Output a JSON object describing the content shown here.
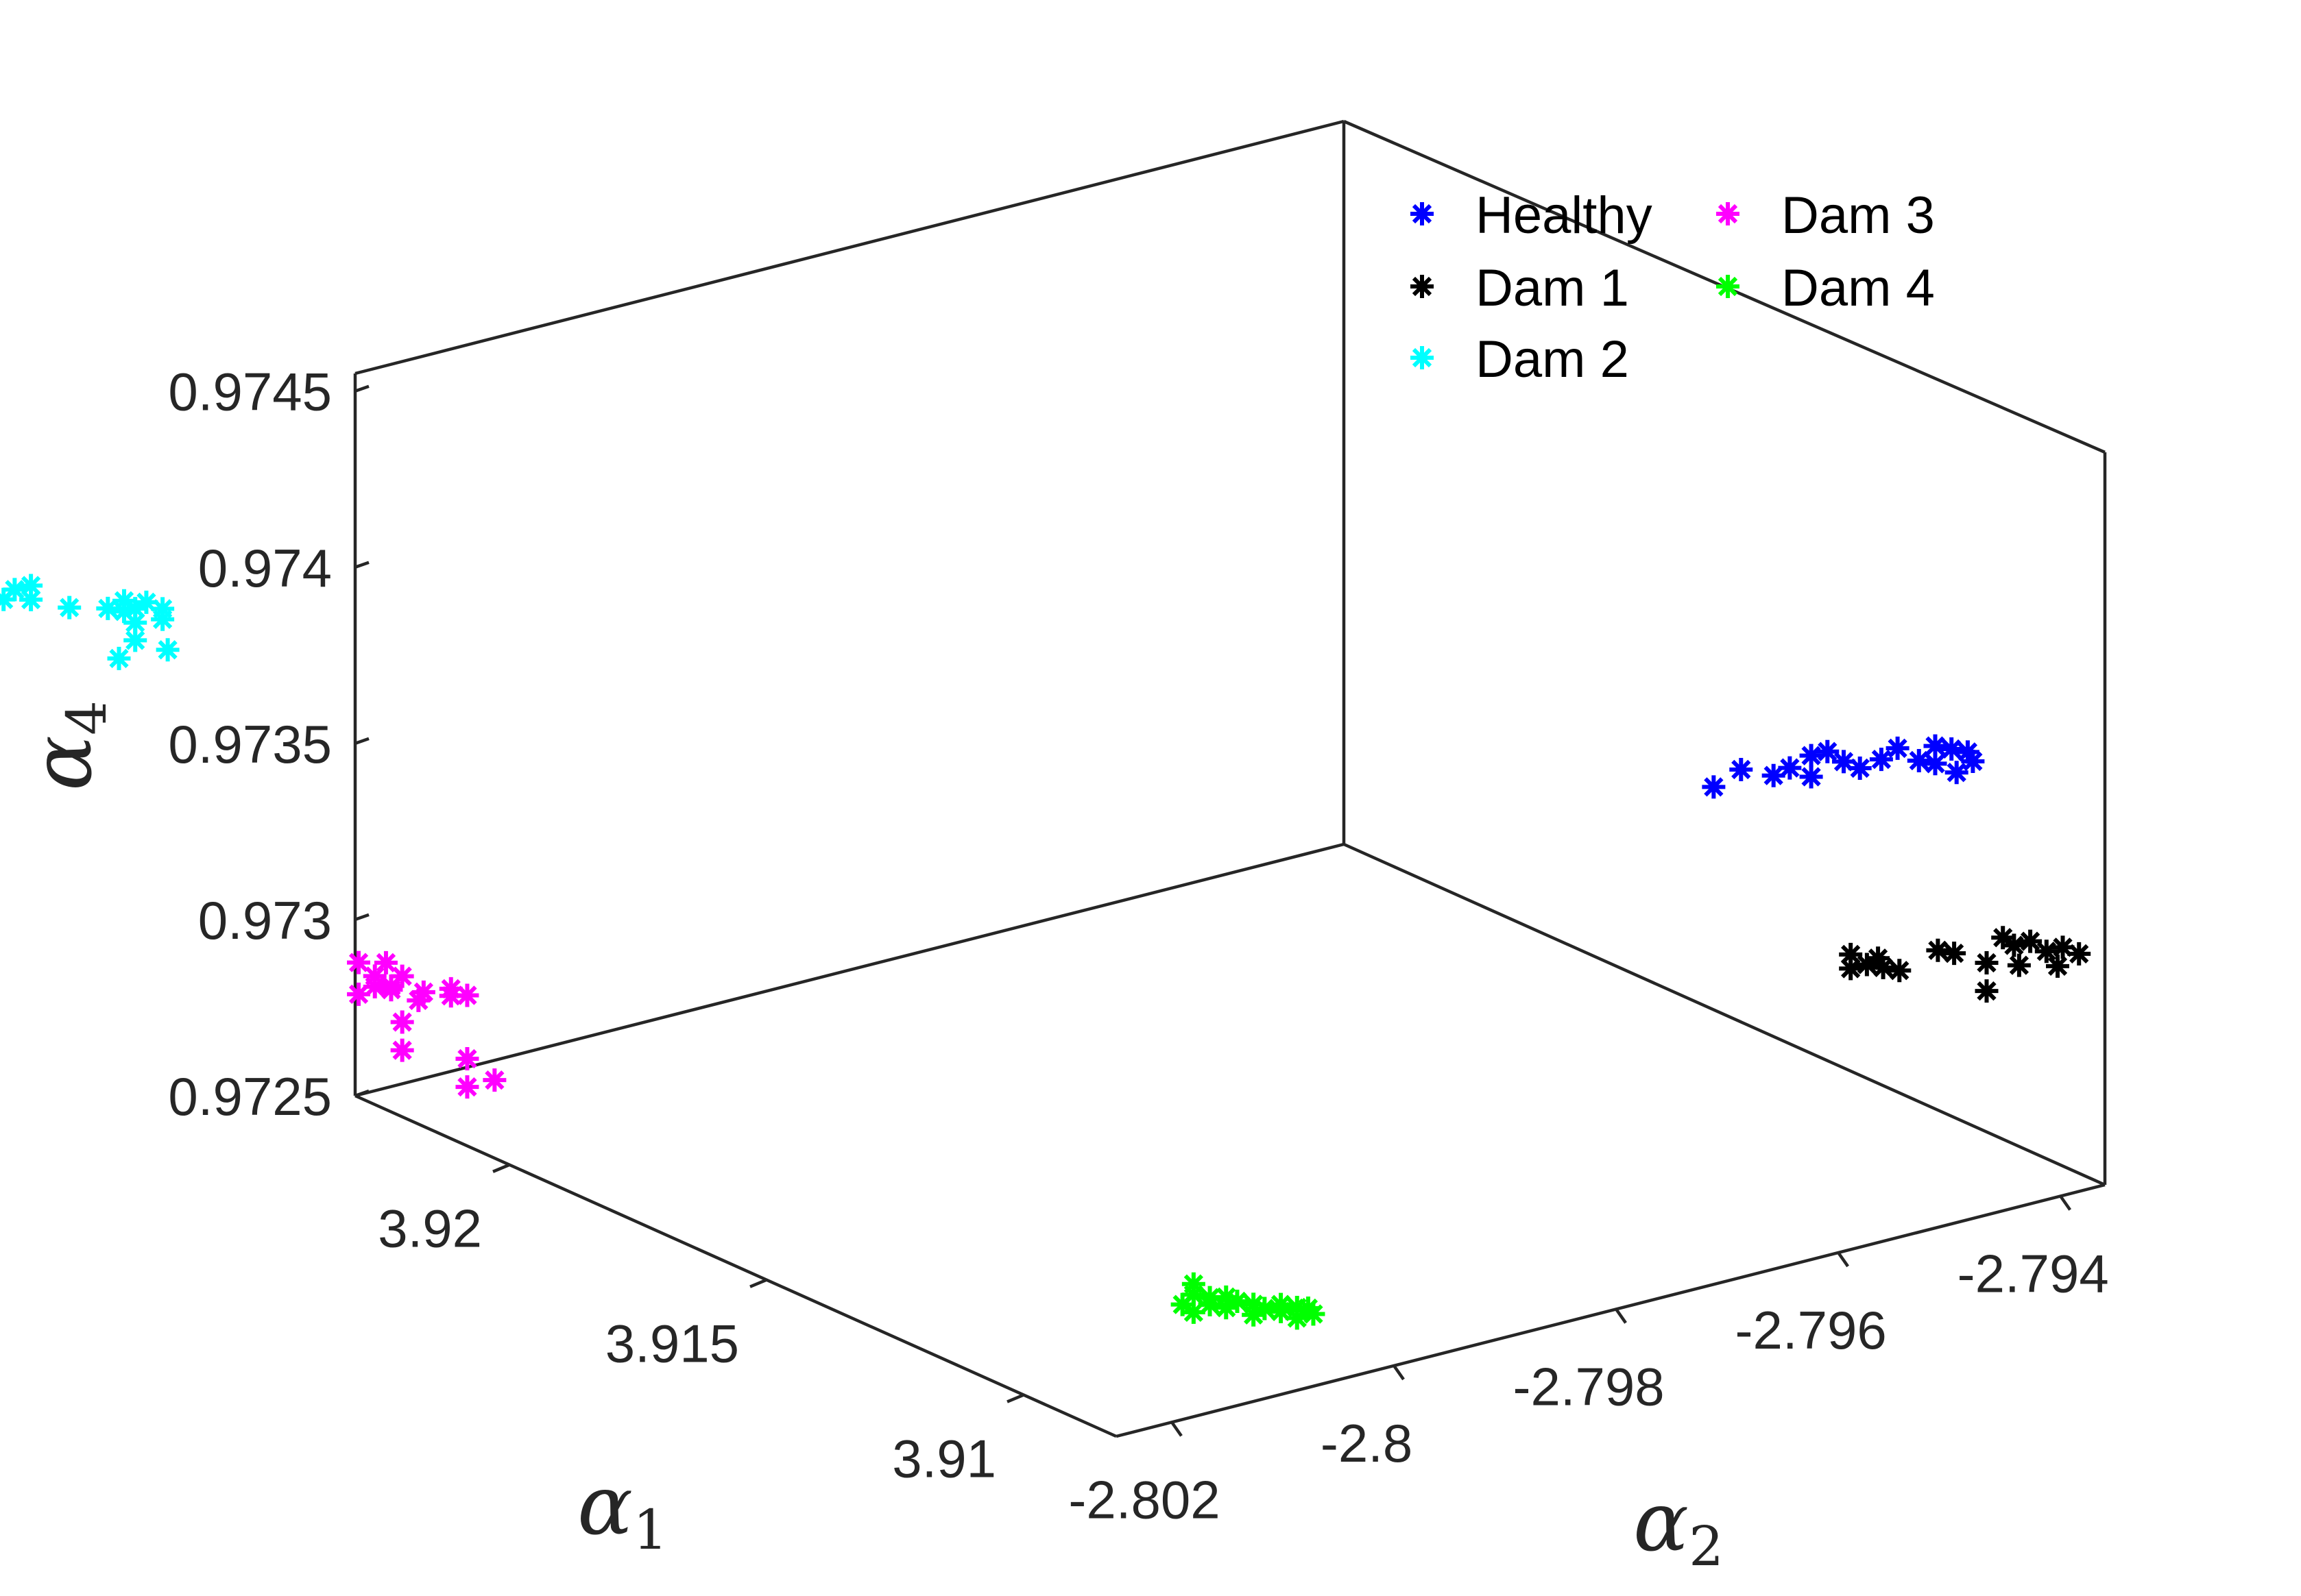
{
  "chart_data": {
    "type": "scatter",
    "dimensions": 3,
    "axes": {
      "x": {
        "label": "α",
        "sub": "1",
        "ticks": [
          3.92,
          3.915,
          3.91
        ],
        "tick_labels": [
          "3.92",
          "3.915",
          "3.91"
        ],
        "range": [
          3.9082,
          3.923
        ]
      },
      "y": {
        "label": "α",
        "sub": "2",
        "ticks": [
          -2.802,
          -2.8,
          -2.798,
          -2.796,
          -2.794
        ],
        "tick_labels": [
          "-2.802",
          "-2.8",
          "-2.798",
          "-2.796",
          "-2.794"
        ],
        "range": [
          -2.8025,
          -2.7936
        ]
      },
      "z": {
        "label": "α",
        "sub": "4",
        "ticks": [
          0.9725,
          0.973,
          0.9735,
          0.974,
          0.9745
        ],
        "tick_labels": [
          "0.9725",
          "0.973",
          "0.9735",
          "0.974",
          "0.9745"
        ],
        "range": [
          0.9725,
          0.97455
        ]
      }
    },
    "legend": {
      "placement": "top-right",
      "columns": 2,
      "order": [
        "Healthy",
        "Dam 1",
        "Dam 2",
        "Dam 3",
        "Dam 4"
      ]
    },
    "marker": "asterisk",
    "series": [
      {
        "name": "Healthy",
        "color": "#0000ff",
        "points": [
          [
            3.913,
            -2.7949,
            0.97342
          ],
          [
            3.9129,
            -2.7947,
            0.97346
          ],
          [
            3.9127,
            -2.7945,
            0.97344
          ],
          [
            3.9126,
            -2.7944,
            0.97346
          ],
          [
            3.9124,
            -2.7943,
            0.9735
          ],
          [
            3.9124,
            -2.7943,
            0.97344
          ],
          [
            3.9123,
            -2.7942,
            0.97351
          ],
          [
            3.9122,
            -2.7941,
            0.97348
          ],
          [
            3.9121,
            -2.794,
            0.97346
          ],
          [
            3.9119,
            -2.7939,
            0.97349
          ],
          [
            3.9118,
            -2.7938,
            0.97352
          ],
          [
            3.9116,
            -2.7937,
            0.97349
          ],
          [
            3.9115,
            -2.7936,
            0.97348
          ],
          [
            3.9114,
            -2.7935,
            0.97352
          ],
          [
            3.9115,
            -2.7936,
            0.97353
          ],
          [
            3.9113,
            -2.7935,
            0.97346
          ],
          [
            3.9113,
            -2.7934,
            0.97351
          ],
          [
            3.9112,
            -2.7934,
            0.97349
          ]
        ]
      },
      {
        "name": "Dam 1",
        "color": "#000000",
        "points": [
          [
            3.9112,
            -2.7945,
            0.97299
          ],
          [
            3.9112,
            -2.7945,
            0.97303
          ],
          [
            3.9111,
            -2.7944,
            0.973
          ],
          [
            3.911,
            -2.7943,
            0.97299
          ],
          [
            3.9111,
            -2.7943,
            0.97301
          ],
          [
            3.9109,
            -2.7942,
            0.97298
          ],
          [
            3.9108,
            -2.7939,
            0.97302
          ],
          [
            3.9107,
            -2.7938,
            0.97301
          ],
          [
            3.9105,
            -2.7936,
            0.9729
          ],
          [
            3.9105,
            -2.7936,
            0.97298
          ],
          [
            3.9104,
            -2.7935,
            0.97305
          ],
          [
            3.9104,
            -2.7934,
            0.97302
          ],
          [
            3.9103,
            -2.7934,
            0.97297
          ],
          [
            3.9103,
            -2.7933,
            0.97303
          ],
          [
            3.9102,
            -2.7932,
            0.973
          ],
          [
            3.9102,
            -2.7931,
            0.97295
          ],
          [
            3.9101,
            -2.7931,
            0.97301
          ],
          [
            3.91,
            -2.793,
            0.97299
          ]
        ]
      },
      {
        "name": "Dam 2",
        "color": "#00ffff",
        "points": [
          [
            3.92,
            -2.8073,
            0.97448
          ],
          [
            3.92,
            -2.8072,
            0.97449
          ],
          [
            3.9199,
            -2.8071,
            0.97448
          ],
          [
            3.9199,
            -2.807,
            0.9745
          ],
          [
            3.9198,
            -2.8069,
            0.97451
          ],
          [
            3.9198,
            -2.8069,
            0.97447
          ],
          [
            3.9197,
            -2.8066,
            0.97443
          ],
          [
            3.9196,
            -2.8063,
            0.97441
          ],
          [
            3.9195,
            -2.8062,
            0.9744
          ],
          [
            3.9195,
            -2.8062,
            0.97443
          ],
          [
            3.9195,
            -2.8061,
            0.9744
          ],
          [
            3.9195,
            -2.8061,
            0.97436
          ],
          [
            3.9195,
            -2.8061,
            0.97431
          ],
          [
            3.9195,
            -2.806,
            0.97441
          ],
          [
            3.9194,
            -2.8059,
            0.97439
          ],
          [
            3.9194,
            -2.8059,
            0.97436
          ],
          [
            3.9196,
            -2.8062,
            0.97426
          ],
          [
            3.9193,
            -2.8059,
            0.97428
          ]
        ]
      },
      {
        "name": "Dam 3",
        "color": "#ff00ff",
        "points": [
          [
            3.9171,
            -2.8052,
            0.97348
          ],
          [
            3.9171,
            -2.8052,
            0.97339
          ],
          [
            3.917,
            -2.8051,
            0.97341
          ],
          [
            3.917,
            -2.8051,
            0.97344
          ],
          [
            3.917,
            -2.805,
            0.97347
          ],
          [
            3.9169,
            -2.805,
            0.97341
          ],
          [
            3.9169,
            -2.805,
            0.9734
          ],
          [
            3.9169,
            -2.8049,
            0.97343
          ],
          [
            3.9169,
            -2.8049,
            0.9733
          ],
          [
            3.9169,
            -2.8049,
            0.97322
          ],
          [
            3.9168,
            -2.8048,
            0.97336
          ],
          [
            3.9167,
            -2.8048,
            0.97339
          ],
          [
            3.9166,
            -2.8046,
            0.97339
          ],
          [
            3.9166,
            -2.8046,
            0.97337
          ],
          [
            3.9165,
            -2.8045,
            0.97337
          ],
          [
            3.9165,
            -2.8045,
            0.97319
          ],
          [
            3.9165,
            -2.8045,
            0.97311
          ],
          [
            3.9164,
            -2.8043,
            0.97312
          ]
        ]
      },
      {
        "name": "Dam 4",
        "color": "#00ff00",
        "points": [
          [
            3.9108,
            -2.8007,
            0.97256
          ],
          [
            3.9108,
            -2.8006,
            0.97258
          ],
          [
            3.9108,
            -2.8006,
            0.97261
          ],
          [
            3.9108,
            -2.8006,
            0.97253
          ],
          [
            3.9107,
            -2.8005,
            0.97257
          ],
          [
            3.9107,
            -2.8005,
            0.97255
          ],
          [
            3.9106,
            -2.8004,
            0.97254
          ],
          [
            3.9106,
            -2.8004,
            0.97257
          ],
          [
            3.9106,
            -2.8003,
            0.97255
          ],
          [
            3.9105,
            -2.8002,
            0.97254
          ],
          [
            3.9105,
            -2.8002,
            0.97251
          ],
          [
            3.9105,
            -2.8001,
            0.97252
          ],
          [
            3.9104,
            -2.8,
            0.97253
          ],
          [
            3.9104,
            -2.8,
            0.97251
          ],
          [
            3.9103,
            -2.7999,
            0.97252
          ],
          [
            3.9103,
            -2.7999,
            0.97249
          ],
          [
            3.9103,
            -2.7998,
            0.97251
          ],
          [
            3.9102,
            -2.7998,
            0.9725
          ]
        ]
      }
    ]
  }
}
